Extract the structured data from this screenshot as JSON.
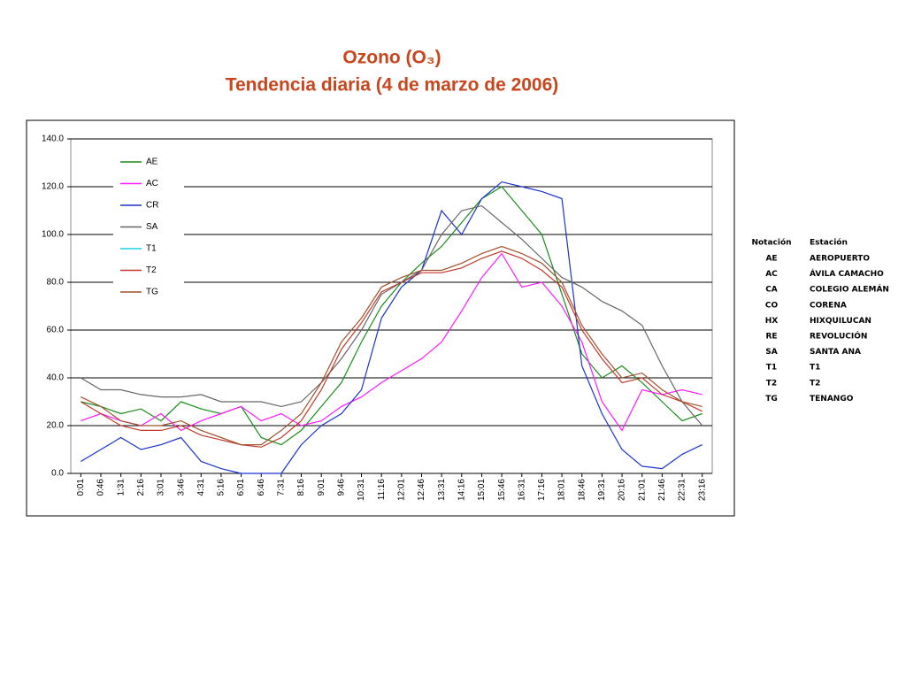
{
  "chart_data": {
    "type": "line",
    "title": "Ozono (O₃)",
    "subtitle": "Tendencia diaria (4 de marzo de 2006)",
    "categories": [
      "0:01",
      "0:46",
      "1:31",
      "2:16",
      "3:01",
      "3:46",
      "4:31",
      "5:16",
      "6:01",
      "6:46",
      "7:31",
      "8:16",
      "9:01",
      "9:46",
      "10:31",
      "11:16",
      "12:01",
      "12:46",
      "13:31",
      "14:16",
      "15:01",
      "15:46",
      "16:31",
      "17:16",
      "18:01",
      "18:46",
      "19:31",
      "20:16",
      "21:01",
      "21:46",
      "22:31",
      "23:16"
    ],
    "series": [
      {
        "name": "AE",
        "color": "#1a8c1a",
        "values": [
          30,
          28,
          25,
          27,
          22,
          30,
          27,
          25,
          28,
          15,
          12,
          18,
          28,
          38,
          55,
          70,
          80,
          88,
          95,
          105,
          115,
          120,
          110,
          100,
          75,
          50,
          40,
          45,
          38,
          30,
          22,
          25
        ]
      },
      {
        "name": "AC",
        "color": "#ff1aff",
        "values": [
          22,
          25,
          22,
          20,
          25,
          18,
          22,
          25,
          28,
          22,
          25,
          20,
          22,
          28,
          32,
          38,
          43,
          48,
          55,
          68,
          82,
          92,
          78,
          80,
          70,
          55,
          30,
          18,
          35,
          33,
          35,
          33
        ]
      },
      {
        "name": "CR",
        "color": "#1a33cc",
        "values": [
          5,
          10,
          15,
          10,
          12,
          15,
          5,
          2,
          0,
          0,
          0,
          12,
          20,
          25,
          35,
          65,
          78,
          85,
          110,
          100,
          115,
          122,
          120,
          118,
          115,
          45,
          25,
          10,
          3,
          2,
          8,
          12
        ]
      },
      {
        "name": "SA",
        "color": "#666666",
        "values": [
          40,
          35,
          35,
          33,
          32,
          32,
          33,
          30,
          30,
          30,
          28,
          30,
          38,
          48,
          60,
          75,
          80,
          85,
          100,
          110,
          112,
          105,
          98,
          90,
          82,
          78,
          72,
          68,
          62,
          45,
          30,
          20
        ]
      },
      {
        "name": "T1",
        "color": "#1ad1e6",
        "values": [
          null,
          null,
          null,
          null,
          null,
          null,
          null,
          null,
          null,
          null,
          null,
          null,
          null,
          null,
          null,
          null,
          null,
          null,
          null,
          null,
          null,
          null,
          null,
          null,
          null,
          null,
          null,
          null,
          null,
          null,
          null,
          null
        ]
      },
      {
        "name": "T2",
        "color": "#c0392b",
        "values": [
          30,
          25,
          20,
          18,
          18,
          20,
          16,
          14,
          12,
          11,
          15,
          22,
          35,
          52,
          63,
          76,
          80,
          84,
          84,
          86,
          90,
          93,
          90,
          85,
          78,
          60,
          48,
          38,
          40,
          33,
          30,
          26
        ]
      },
      {
        "name": "TG",
        "color": "#a0522d",
        "values": [
          32,
          28,
          22,
          20,
          20,
          22,
          18,
          15,
          12,
          12,
          18,
          25,
          38,
          55,
          65,
          78,
          82,
          85,
          85,
          88,
          92,
          95,
          92,
          88,
          80,
          62,
          50,
          40,
          42,
          35,
          30,
          28
        ]
      }
    ],
    "ylim": [
      0,
      140
    ],
    "yticks": [
      {
        "value": 0,
        "label": "0.0"
      },
      {
        "value": 20,
        "label": "20.0"
      },
      {
        "value": 40,
        "label": "40.0"
      },
      {
        "value": 60,
        "label": "60.0"
      },
      {
        "value": 80,
        "label": "80.0"
      },
      {
        "value": 100,
        "label": "100.0"
      },
      {
        "value": 120,
        "label": "120.0"
      },
      {
        "value": 140,
        "label": "140.0"
      }
    ],
    "grid": true
  },
  "station_table": {
    "headers": [
      "Notación",
      "Estación"
    ],
    "rows": [
      [
        "AE",
        "AEROPUERTO"
      ],
      [
        "AC",
        "ÁVILA CAMACHO"
      ],
      [
        "CA",
        "COLEGIO ALEMÁN"
      ],
      [
        "CO",
        "CORENA"
      ],
      [
        "HX",
        "HIXQUILUCAN"
      ],
      [
        "RE",
        "REVOLUCIÓN"
      ],
      [
        "SA",
        "SANTA ANA"
      ],
      [
        "T1",
        "T1"
      ],
      [
        "T2",
        "T2"
      ],
      [
        "TG",
        "TENANGO"
      ]
    ]
  }
}
